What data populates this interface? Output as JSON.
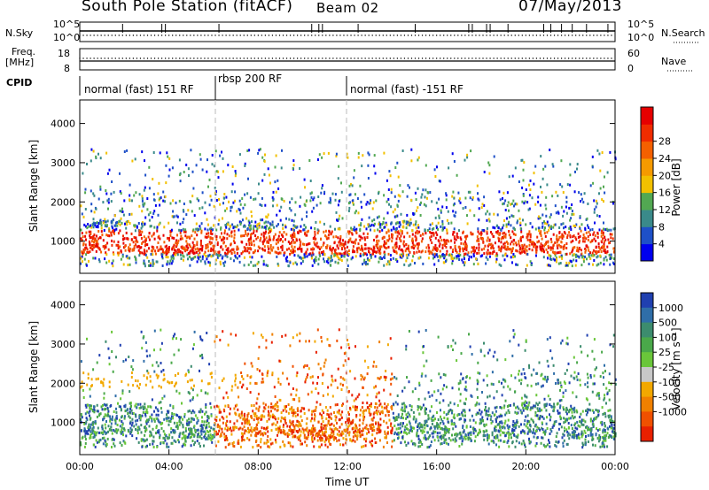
{
  "header": {
    "station": "South Pole Station (fitACF)",
    "beam": "Beam 02",
    "date": "07/May/2013"
  },
  "top_panels": {
    "nsky_label": "N.Sky",
    "nsky_ticks": [
      "10^5",
      "10^0"
    ],
    "nsearch_label": "N.Search",
    "nsearch_ticks": [
      "10^5",
      "10^0"
    ],
    "freq_label_1": "Freq.",
    "freq_label_2": "[MHz]",
    "freq_ticks": [
      "18",
      "8"
    ],
    "nave_label": "Nave",
    "nave_ticks": [
      "60",
      "0"
    ],
    "cpid_label": "CPID",
    "modes": [
      {
        "label": "normal (fast) 151 RF",
        "start_hour": 0
      },
      {
        "label": "rbsp 200 RF",
        "start_hour": 6
      },
      {
        "label": "normal (fast) -151 RF",
        "start_hour": 12
      }
    ]
  },
  "chart_data": [
    {
      "type": "heatmap",
      "parameter": "Power",
      "ylabel": "Slant Range [km]",
      "xlabel": "Time UT",
      "x_ticks": [
        "00:00",
        "04:00",
        "08:00",
        "12:00",
        "16:00",
        "20:00",
        "00:00"
      ],
      "y_ticks": [
        "1000",
        "2000",
        "3000",
        "4000"
      ],
      "xlim_hours": [
        0,
        24
      ],
      "ylim_km": [
        180,
        4600
      ],
      "colorbar_label": "Power [dB]",
      "colorbar_ticks": [
        "4",
        "8",
        "12",
        "16",
        "20",
        "24",
        "28"
      ],
      "colorbar_colors": [
        "#0000ee",
        "#1e50c8",
        "#3a8a8a",
        "#52a852",
        "#f2c000",
        "#f59a00",
        "#f46000",
        "#f02c00",
        "#e60000"
      ]
    },
    {
      "type": "heatmap",
      "parameter": "Velocity",
      "ylabel": "Slant Range [km]",
      "xlabel": "Time UT",
      "x_ticks": [
        "00:00",
        "04:00",
        "08:00",
        "12:00",
        "16:00",
        "20:00",
        "00:00"
      ],
      "y_ticks": [
        "1000",
        "2000",
        "3000",
        "4000"
      ],
      "xlim_hours": [
        0,
        24
      ],
      "ylim_km": [
        180,
        4600
      ],
      "colorbar_label": "Velocity [m s⁻¹]",
      "colorbar_ticks": [
        "1000",
        "500",
        "100",
        "25",
        "-25",
        "-100",
        "-500",
        "-1000"
      ],
      "colorbar_colors": [
        "#2040b0",
        "#2f6ea8",
        "#3c8c6e",
        "#4aa84a",
        "#6ac63a",
        "#c8c8c8",
        "#f2a800",
        "#f08000",
        "#f05000",
        "#e82000"
      ]
    }
  ]
}
